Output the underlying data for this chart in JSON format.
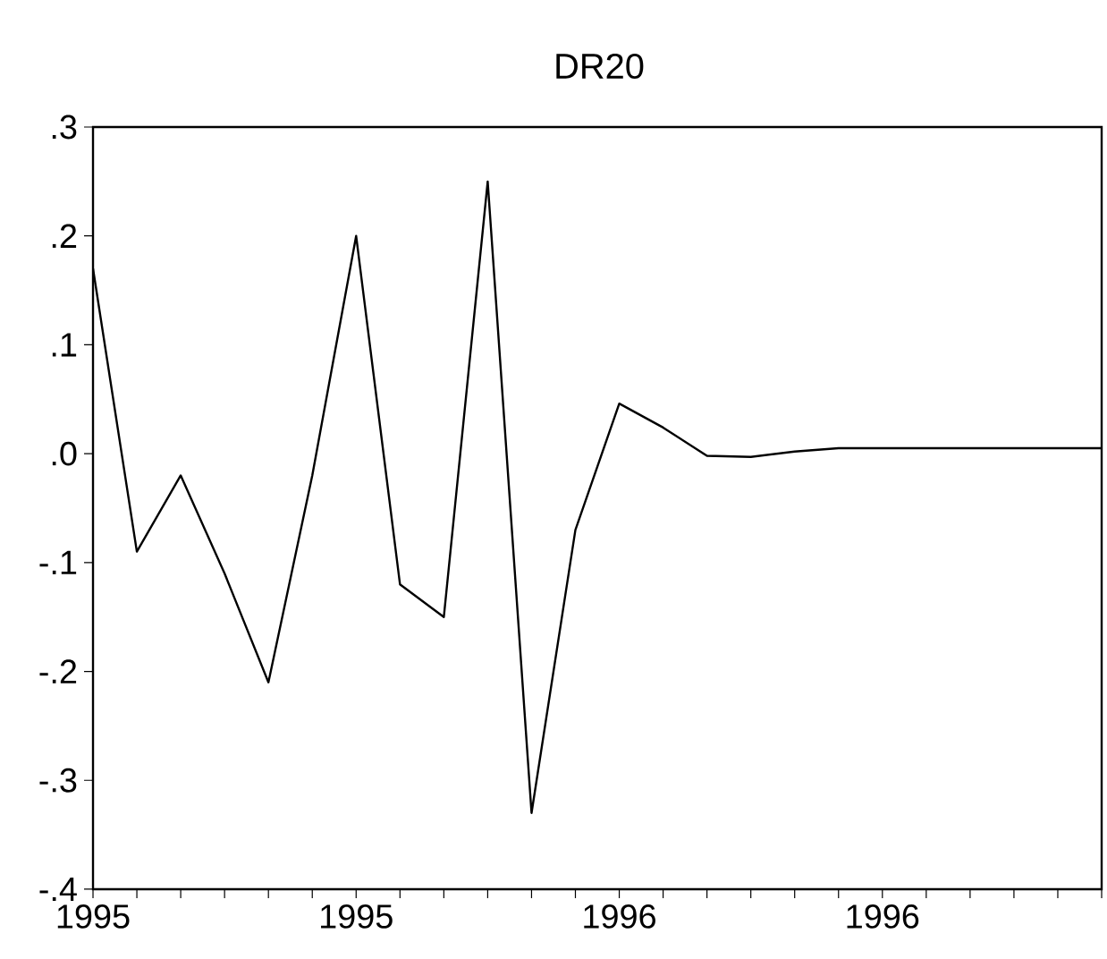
{
  "chart_data": {
    "type": "line",
    "title": "DR20",
    "categories": [
      "1995",
      null,
      null,
      null,
      null,
      null,
      "1995",
      null,
      null,
      null,
      null,
      null,
      "1996",
      null,
      null,
      null,
      null,
      null,
      "1996",
      null,
      null,
      null,
      null,
      null
    ],
    "series": [
      {
        "color": "#000000",
        "values": [
          0.17,
          -0.09,
          -0.02,
          -0.11,
          -0.21,
          -0.02,
          0.2,
          -0.12,
          -0.15,
          0.25,
          -0.33,
          -0.07,
          0.046,
          0.024,
          -0.002,
          -0.003,
          0.002,
          0.005,
          0.005,
          0.005,
          0.005,
          0.005,
          0.005,
          0.005
        ]
      }
    ],
    "ylim": [
      -0.4,
      0.3
    ],
    "yticks": [
      {
        "value": -0.4,
        "label": "-.4"
      },
      {
        "value": -0.3,
        "label": "-.3"
      },
      {
        "value": -0.2,
        "label": "-.2"
      },
      {
        "value": -0.1,
        "label": "-.1"
      },
      {
        "value": 0.0,
        "label": ".0"
      },
      {
        "value": 0.1,
        "label": ".1"
      },
      {
        "value": 0.2,
        "label": ".2"
      },
      {
        "value": 0.3,
        "label": ".3"
      }
    ],
    "grid": false,
    "marker": "none",
    "line_style": "solid"
  }
}
